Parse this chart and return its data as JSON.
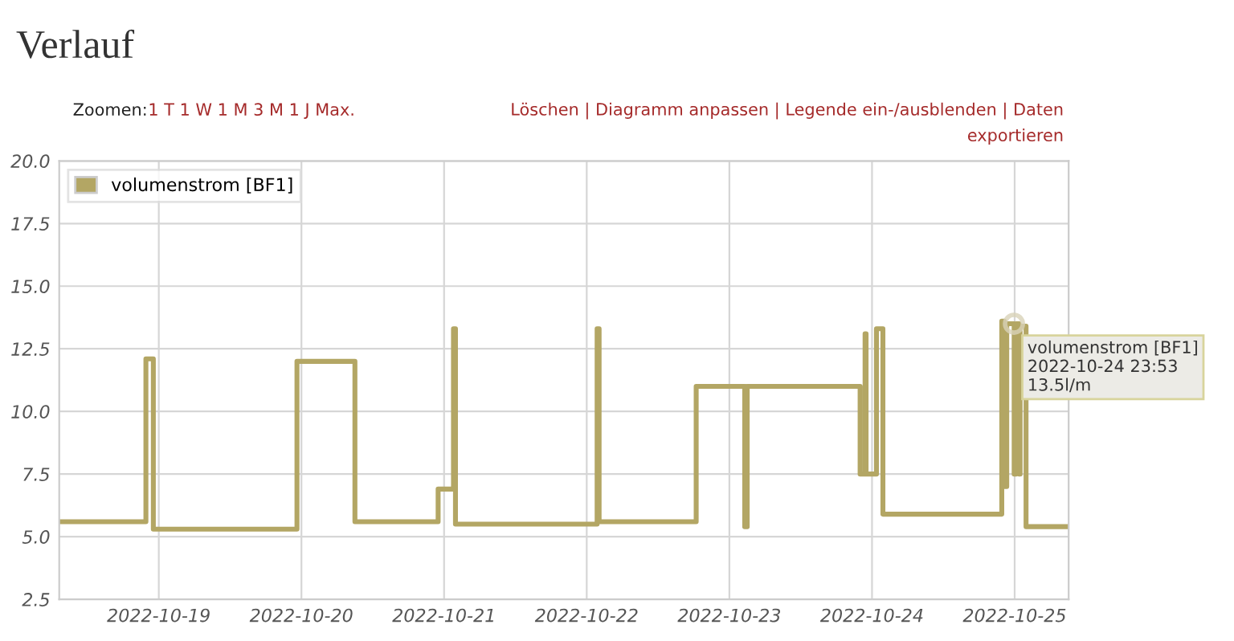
{
  "chart_data": {
    "type": "step",
    "title": "Verlauf",
    "x": [
      "2022-10-18T07:15",
      "2022-10-18T21:50",
      "2022-10-18T23:05",
      "2022-10-19T23:15",
      "2022-10-20T09:00",
      "2022-10-20T23:00",
      "2022-10-21T01:35",
      "2022-10-21T01:55",
      "2022-10-22T01:45",
      "2022-10-22T02:05",
      "2022-10-22T18:25",
      "2022-10-23T02:35",
      "2022-10-23T03:00",
      "2022-10-23T22:00",
      "2022-10-23T22:50",
      "2022-10-23T23:00",
      "2022-10-24T00:45",
      "2022-10-24T01:50",
      "2022-10-24T21:50",
      "2022-10-24T22:15",
      "2022-10-24T22:40",
      "2022-10-24T23:55",
      "2022-10-25T00:15",
      "2022-10-25T00:45",
      "2022-10-25T00:55",
      "2022-10-25T01:55",
      "2022-10-25T09:05"
    ],
    "series": [
      {
        "name": "volumenstrom [BF1]",
        "color": "#b3a664",
        "values": [
          5.6,
          12.1,
          5.3,
          12.0,
          5.6,
          6.9,
          13.3,
          5.5,
          13.3,
          5.6,
          11.0,
          5.4,
          11.0,
          7.5,
          13.1,
          7.5,
          13.3,
          5.9,
          13.6,
          7.0,
          13.5,
          7.5,
          13.5,
          7.5,
          13.4,
          5.4,
          5.4
        ]
      }
    ],
    "xlim": [
      "2022-10-18T07:15",
      "2022-10-25T09:05"
    ],
    "xticks": [
      "2022-10-19",
      "2022-10-20",
      "2022-10-21",
      "2022-10-22",
      "2022-10-23",
      "2022-10-24",
      "2022-10-25"
    ],
    "ylim": [
      2.5,
      20.0
    ],
    "yticks": [
      {
        "value": 2.5,
        "label": "2.5"
      },
      {
        "value": 5,
        "label": "5.0"
      },
      {
        "value": 7.5,
        "label": "7.5"
      },
      {
        "value": 10,
        "label": "10.0"
      },
      {
        "value": 12.5,
        "label": "12.5"
      },
      {
        "value": 15,
        "label": "15.0"
      },
      {
        "value": 17.5,
        "label": "17.5"
      },
      {
        "value": 20,
        "label": "20.0"
      }
    ],
    "grid": true,
    "legend": "top left",
    "annotations": [
      "Zoomen:",
      "1 T 1 W 1 M 3 M 1 J Max.",
      "Löschen | Diagramm anpassen | Legende ein-/ausblenden | Daten exportieren",
      {
        "text": "volumenstrom [BF1]\n2022-10-24 23:53\n13.5l/m",
        "x": "2022-10-24T23:53",
        "y": 13.5
      }
    ]
  }
}
